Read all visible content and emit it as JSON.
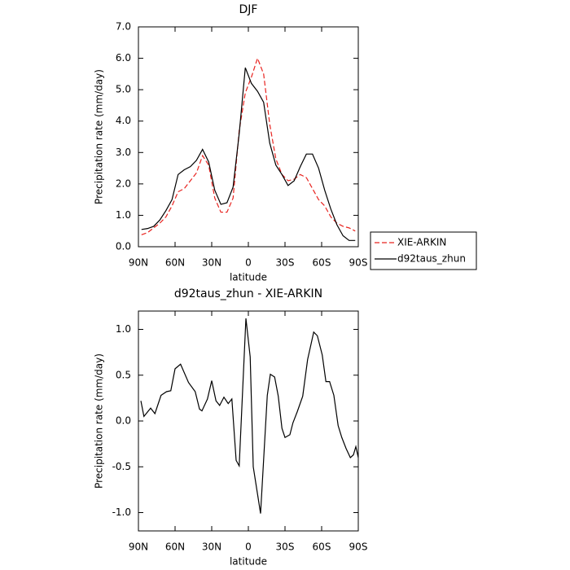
{
  "chart_data": [
    {
      "type": "line",
      "title": "DJF",
      "xlabel": "latitude",
      "ylabel": "Precipitation rate (mm/day)",
      "x": [
        87.5,
        82.5,
        77.5,
        72.5,
        67.5,
        62.5,
        57.5,
        52.5,
        47.5,
        42.5,
        37.5,
        32.5,
        27.5,
        22.5,
        17.5,
        12.5,
        7.5,
        2.5,
        -2.5,
        -7.5,
        -12.5,
        -17.5,
        -22.5,
        -27.5,
        -32.5,
        -37.5,
        -42.5,
        -47.5,
        -52.5,
        -57.5,
        -62.5,
        -67.5,
        -72.5,
        -77.5,
        -82.5,
        -87.5
      ],
      "series": [
        {
          "name": "XIE-ARKIN",
          "color": "#e8231f",
          "line_style": "dashed",
          "values": [
            0.38,
            0.45,
            0.6,
            0.75,
            0.95,
            1.3,
            1.75,
            1.85,
            2.1,
            2.35,
            2.9,
            2.6,
            1.55,
            1.1,
            1.1,
            1.55,
            3.7,
            4.9,
            5.4,
            6.0,
            5.5,
            3.9,
            2.8,
            2.3,
            2.1,
            2.15,
            2.3,
            2.2,
            1.85,
            1.5,
            1.3,
            0.95,
            0.75,
            0.65,
            0.6,
            0.5
          ]
        },
        {
          "name": "d92taus_zhun",
          "color": "#000000",
          "line_style": "solid",
          "values": [
            0.55,
            0.58,
            0.65,
            0.85,
            1.15,
            1.5,
            2.3,
            2.45,
            2.55,
            2.75,
            3.1,
            2.7,
            1.8,
            1.35,
            1.4,
            1.9,
            3.6,
            5.7,
            5.2,
            4.95,
            4.6,
            3.3,
            2.6,
            2.3,
            1.95,
            2.1,
            2.55,
            2.95,
            2.95,
            2.5,
            1.8,
            1.2,
            0.7,
            0.35,
            0.2,
            0.2
          ]
        }
      ],
      "xlim": [
        90,
        -90
      ],
      "xticks": [
        {
          "value": 90,
          "label": "90N"
        },
        {
          "value": 60,
          "label": "60N"
        },
        {
          "value": 30,
          "label": "30N"
        },
        0,
        {
          "value": -30,
          "label": "30S"
        },
        {
          "value": -60,
          "label": "60S"
        },
        {
          "value": -90,
          "label": "90S"
        }
      ],
      "ylim": [
        0,
        7
      ],
      "yticks": [
        {
          "value": 0,
          "label": "0.0"
        },
        {
          "value": 1,
          "label": "1.0"
        },
        {
          "value": 2,
          "label": "2.0"
        },
        {
          "value": 3,
          "label": "3.0"
        },
        {
          "value": 4,
          "label": "4.0"
        },
        {
          "value": 5,
          "label": "5.0"
        },
        {
          "value": 6,
          "label": "6.0"
        },
        {
          "value": 7,
          "label": "7.0"
        }
      ],
      "legend": "outside-right"
    },
    {
      "type": "line",
      "title": "d92taus_zhun - XIE-ARKIN",
      "xlabel": "latitude",
      "ylabel": "Precipitation rate (mm/day)",
      "x": [
        88,
        85.5,
        80,
        76.5,
        71.5,
        67,
        63.5,
        60,
        55.5,
        49,
        43.5,
        40,
        38,
        33.5,
        30,
        26.5,
        23.5,
        20,
        16.5,
        13.5,
        10,
        7.5,
        2,
        -1.5,
        -4,
        -10,
        -15.5,
        -18,
        -21.5,
        -24.5,
        -27.5,
        -30,
        -34,
        -36.5,
        -40,
        -44.5,
        -48.5,
        -53.5,
        -56.5,
        -60.5,
        -63.5,
        -66.5,
        -70,
        -73.5,
        -76.5,
        -80,
        -83.5,
        -86,
        -88,
        -90
      ],
      "values": [
        0.22,
        0.05,
        0.14,
        0.08,
        0.28,
        0.32,
        0.33,
        0.57,
        0.62,
        0.42,
        0.32,
        0.13,
        0.11,
        0.24,
        0.44,
        0.22,
        0.17,
        0.26,
        0.19,
        0.24,
        -0.43,
        -0.49,
        1.12,
        0.7,
        -0.5,
        -1.01,
        0.28,
        0.51,
        0.48,
        0.27,
        -0.08,
        -0.18,
        -0.15,
        -0.02,
        0.1,
        0.27,
        0.67,
        0.97,
        0.93,
        0.72,
        0.43,
        0.43,
        0.28,
        -0.05,
        -0.18,
        -0.3,
        -0.4,
        -0.37,
        -0.28,
        -0.4
      ],
      "color": "#000000",
      "xlim": [
        90,
        -90
      ],
      "xticks": [
        {
          "value": 90,
          "label": "90N"
        },
        {
          "value": 60,
          "label": "60N"
        },
        {
          "value": 30,
          "label": "30N"
        },
        0,
        {
          "value": -30,
          "label": "30S"
        },
        {
          "value": -60,
          "label": "60S"
        },
        {
          "value": -90,
          "label": "90S"
        }
      ],
      "ylim": [
        -1.2,
        1.2
      ],
      "yticks": [
        {
          "value": -1,
          "label": "-1.0"
        },
        {
          "value": -0.5,
          "label": "-0.5"
        },
        {
          "value": 0,
          "label": "0.0"
        },
        {
          "value": 0.5,
          "label": "0.5"
        },
        {
          "value": 1,
          "label": "1.0"
        }
      ]
    }
  ]
}
